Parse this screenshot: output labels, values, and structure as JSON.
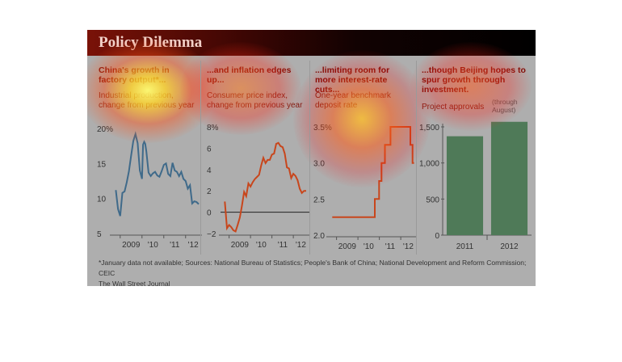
{
  "title": "Policy Dilemma",
  "footnote": "*January data not available; Sources: National Bureau of Statistics; People's Bank of China; National Development and Reform Commission; CEIC",
  "credit": "The Wall Street Journal",
  "colors": {
    "line_blue": "#3f6a8a",
    "line_red": "#c8461c",
    "bar_green": "#4f7a58",
    "headline": "#7a0e08"
  },
  "panels": [
    {
      "headline": "China's growth in factory output*...",
      "subtitle": "Industrial production, change from previous year"
    },
    {
      "headline": "...and inflation edges up...",
      "subtitle": "Consumer price index, change from previous year"
    },
    {
      "headline": "...limiting room for more interest-rate cuts...",
      "subtitle": "One-year benchmark deposit rate"
    },
    {
      "headline": "...though Beijing hopes to spur growth through investment.",
      "subtitle": "Project approvals",
      "note": "(through August)"
    }
  ],
  "chart_data": [
    {
      "type": "line",
      "title": "Industrial production, change from previous year",
      "unit": "%",
      "ylim": [
        5,
        20
      ],
      "yticks": [
        "20%",
        "15",
        "10",
        "5"
      ],
      "xticks": [
        "2009",
        "'10",
        "'11",
        "'12"
      ],
      "xlim": [
        2008.6,
        2012.75
      ],
      "x": [
        2008.8,
        2008.9,
        2009.0,
        2009.1,
        2009.2,
        2009.3,
        2009.4,
        2009.5,
        2009.6,
        2009.7,
        2009.8,
        2009.9,
        2010.0,
        2010.05,
        2010.1,
        2010.15,
        2010.2,
        2010.3,
        2010.4,
        2010.5,
        2010.6,
        2010.7,
        2010.8,
        2010.9,
        2011.0,
        2011.1,
        2011.2,
        2011.3,
        2011.4,
        2011.5,
        2011.6,
        2011.7,
        2011.8,
        2011.9,
        2012.0,
        2012.1,
        2012.2,
        2012.3,
        2012.4,
        2012.5,
        2012.6
      ],
      "values": [
        11.2,
        8.5,
        7.5,
        10.8,
        11,
        12.3,
        13.9,
        16.1,
        18.2,
        19.2,
        17.9,
        14,
        12.8,
        17.7,
        18.1,
        17.8,
        16.7,
        13.7,
        13.2,
        13.6,
        13.8,
        13.3,
        13.1,
        13.9,
        14.8,
        15.0,
        13.5,
        13.2,
        15.1,
        14.0,
        13.8,
        13.2,
        13.8,
        12.8,
        12.5,
        11.4,
        11.9,
        9.3,
        9.6,
        9.5,
        9.2
      ],
      "series": [
        {
          "name": "Industrial production",
          "color": "#3f6a8a"
        }
      ]
    },
    {
      "type": "line",
      "title": "Consumer price index, change from previous year",
      "unit": "%",
      "ylim": [
        -2,
        8
      ],
      "yticks": [
        "8%",
        "6",
        "4",
        "2",
        "0",
        "−2"
      ],
      "xticks": [
        "2009",
        "'10",
        "'11",
        "'12"
      ],
      "xlim": [
        2008.6,
        2012.75
      ],
      "x": [
        2008.8,
        2008.9,
        2009.0,
        2009.1,
        2009.2,
        2009.3,
        2009.4,
        2009.5,
        2009.6,
        2009.7,
        2009.8,
        2009.9,
        2010.0,
        2010.1,
        2010.2,
        2010.3,
        2010.4,
        2010.5,
        2010.6,
        2010.7,
        2010.8,
        2010.9,
        2011.0,
        2011.1,
        2011.2,
        2011.3,
        2011.4,
        2011.5,
        2011.6,
        2011.7,
        2011.8,
        2011.9,
        2012.0,
        2012.1,
        2012.2,
        2012.3,
        2012.4,
        2012.5,
        2012.6
      ],
      "values": [
        1.0,
        -1.5,
        -1.2,
        -1.4,
        -1.7,
        -1.8,
        -1.2,
        -0.5,
        0.6,
        1.9,
        1.5,
        2.7,
        2.4,
        2.8,
        3.1,
        3.3,
        3.5,
        4.4,
        5.1,
        4.6,
        4.9,
        4.9,
        5.4,
        5.5,
        6.4,
        6.5,
        6.2,
        6.1,
        5.5,
        4.2,
        4.1,
        3.2,
        3.6,
        3.4,
        3.0,
        2.2,
        1.8,
        2.0,
        2.0
      ],
      "series": [
        {
          "name": "Consumer price index",
          "color": "#c8461c"
        }
      ]
    },
    {
      "type": "line",
      "title": "One-year benchmark deposit rate",
      "unit": "%",
      "ylim": [
        2.0,
        3.5
      ],
      "yticks": [
        "3.5%",
        "3.0",
        "2.5",
        "2.0"
      ],
      "xticks": [
        "2009",
        "'10",
        "'11",
        "'12"
      ],
      "xlim": [
        2008.6,
        2012.75
      ],
      "x": [
        2008.8,
        2010.79,
        2010.79,
        2010.99,
        2010.99,
        2011.1,
        2011.1,
        2011.26,
        2011.26,
        2011.52,
        2011.52,
        2012.45,
        2012.45,
        2012.55,
        2012.55,
        2012.62
      ],
      "values": [
        2.25,
        2.25,
        2.5,
        2.5,
        2.75,
        2.75,
        3.0,
        3.0,
        3.25,
        3.25,
        3.5,
        3.5,
        3.25,
        3.25,
        3.0,
        3.0
      ],
      "series": [
        {
          "name": "One-year benchmark deposit rate",
          "color": "#c8461c"
        }
      ]
    },
    {
      "type": "bar",
      "title": "Project approvals",
      "ylim": [
        0,
        1500
      ],
      "yticks": [
        "1,500",
        "1,000",
        "500",
        "0"
      ],
      "categories": [
        "2011",
        "2012"
      ],
      "values": [
        1370,
        1570
      ],
      "series": [
        {
          "name": "Project approvals",
          "color": "#4f7a58"
        }
      ]
    }
  ]
}
